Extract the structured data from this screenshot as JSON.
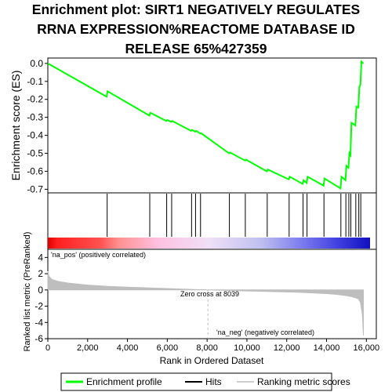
{
  "title_lines": [
    "Enrichment plot: SIRT1 NEGATIVELY REGULATES",
    "RRNA EXPRESSION%REACTOME DATABASE ID",
    "RELEASE 65%427359"
  ],
  "colors": {
    "enrichment": "#00ff00",
    "hits": "#000000",
    "metric": "#bebebe",
    "pos_label": "#cc0000",
    "neg_label": "#0000cc",
    "zero_line": "#c0c0c0"
  },
  "chart_data": {
    "type": "line",
    "xlabel": "Rank in Ordered Dataset",
    "xlim": [
      0,
      16500
    ],
    "xticks": [
      0,
      2000,
      4000,
      6000,
      8000,
      10000,
      12000,
      14000,
      16000
    ],
    "xtick_labels": [
      "0",
      "2,000",
      "4,000",
      "6,000",
      "8,000",
      "10,000",
      "12,000",
      "14,000",
      "16,000"
    ],
    "es_panel": {
      "ylabel": "Enrichment score (ES)",
      "ylim": [
        -0.72,
        0.03
      ],
      "yticks": [
        0.0,
        -0.1,
        -0.2,
        -0.3,
        -0.4,
        -0.5,
        -0.6,
        -0.7
      ],
      "ytick_labels": [
        "0.0",
        "-0.1",
        "-0.2",
        "-0.3",
        "-0.4",
        "-0.5",
        "-0.6",
        "-0.7"
      ],
      "series": [
        {
          "name": "Enrichment profile",
          "x": [
            0,
            2950,
            3000,
            5100,
            5150,
            5950,
            6000,
            6200,
            6250,
            7200,
            7250,
            7400,
            7450,
            7650,
            7700,
            9100,
            9150,
            9900,
            9950,
            11000,
            11050,
            12100,
            12150,
            12800,
            12850,
            13000,
            13050,
            13850,
            13900,
            14700,
            14750,
            14950,
            15000,
            15100,
            15150,
            15200,
            15250,
            15450,
            15500,
            15600,
            15650,
            15700,
            15750,
            15850
          ],
          "y": [
            0.0,
            -0.185,
            -0.155,
            -0.29,
            -0.275,
            -0.32,
            -0.315,
            -0.325,
            -0.32,
            -0.375,
            -0.37,
            -0.38,
            -0.375,
            -0.39,
            -0.388,
            -0.5,
            -0.495,
            -0.54,
            -0.535,
            -0.6,
            -0.59,
            -0.645,
            -0.63,
            -0.67,
            -0.65,
            -0.665,
            -0.63,
            -0.68,
            -0.64,
            -0.695,
            -0.63,
            -0.65,
            -0.57,
            -0.58,
            -0.5,
            -0.51,
            -0.33,
            -0.345,
            -0.24,
            -0.245,
            -0.13,
            -0.12,
            0.01,
            0.0
          ]
        }
      ]
    },
    "hits": [
      2980,
      5120,
      5970,
      6220,
      7220,
      7420,
      7670,
      9120,
      9920,
      11020,
      12120,
      12820,
      13020,
      13870,
      14720,
      14970,
      15120,
      15220,
      15470,
      15620,
      15720
    ],
    "metric_panel": {
      "ylabel": "Ranked list metric (PreRanked)",
      "ylim": [
        -6,
        5
      ],
      "yticks": [
        4,
        2,
        0,
        -2,
        -4,
        -6
      ],
      "ytick_labels": [
        "4",
        "2",
        "0",
        "-2",
        "-4",
        "-6"
      ],
      "x": [
        0,
        50,
        200,
        500,
        1000,
        2000,
        3000,
        4000,
        6000,
        8039,
        10000,
        12000,
        13000,
        14000,
        14500,
        15000,
        15300,
        15600,
        15700,
        15800,
        15850
      ],
      "y": [
        2.3,
        1.7,
        1.3,
        1.05,
        0.85,
        0.6,
        0.45,
        0.35,
        0.18,
        0.0,
        -0.12,
        -0.25,
        -0.33,
        -0.45,
        -0.55,
        -0.7,
        -0.85,
        -1.1,
        -1.5,
        -3.0,
        -5.6
      ],
      "zero_cross": 8039,
      "zero_cross_label": "Zero cross at 8039",
      "pos_label": "'na_pos' (positively correlated)",
      "neg_label": "'na_neg' (negatively correlated)"
    },
    "legend": {
      "placement": "bottom",
      "items": [
        {
          "label": "Enrichment profile",
          "color": "#00ff00",
          "kind": "line"
        },
        {
          "label": "Hits",
          "color": "#000000",
          "kind": "line"
        },
        {
          "label": "Ranking metric scores",
          "color": "#bebebe",
          "kind": "line"
        }
      ]
    }
  }
}
